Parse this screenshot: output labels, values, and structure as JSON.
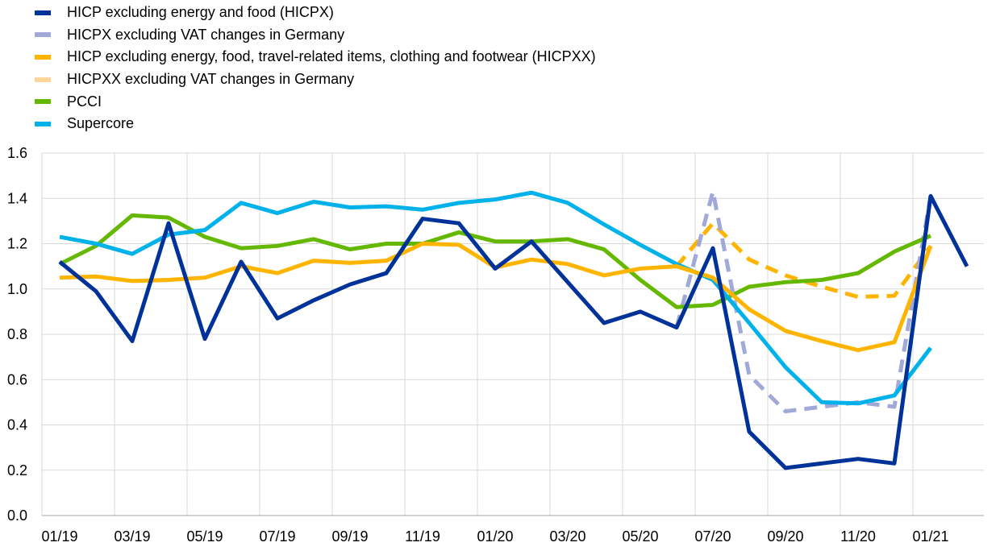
{
  "chart_data": {
    "type": "line",
    "title": "",
    "xlabel": "",
    "ylabel": "",
    "ylim": [
      0.0,
      1.6
    ],
    "yticks": [
      "0.0",
      "0.2",
      "0.4",
      "0.6",
      "0.8",
      "1.0",
      "1.2",
      "1.4",
      "1.6"
    ],
    "x": [
      "01/19",
      "02/19",
      "03/19",
      "04/19",
      "05/19",
      "06/19",
      "07/19",
      "08/19",
      "09/19",
      "10/19",
      "11/19",
      "12/19",
      "01/20",
      "02/20",
      "03/20",
      "04/20",
      "05/20",
      "06/20",
      "07/20",
      "08/20",
      "09/20",
      "10/20",
      "11/20",
      "12/20",
      "01/21",
      "02/21"
    ],
    "xtick_labels": [
      "01/19",
      "03/19",
      "05/19",
      "07/19",
      "09/19",
      "11/19",
      "01/20",
      "03/20",
      "05/20",
      "07/20",
      "09/20",
      "11/20",
      "01/21"
    ],
    "grid": true,
    "legend_position": "top-left",
    "series": [
      {
        "name": "HICP excluding energy and food (HICPX)",
        "color": "#003299",
        "style": "solid",
        "values": [
          1.12,
          0.99,
          0.77,
          1.29,
          0.78,
          1.12,
          0.87,
          0.95,
          1.02,
          1.07,
          1.31,
          1.29,
          1.09,
          1.21,
          1.03,
          0.85,
          0.9,
          0.83,
          1.18,
          0.37,
          0.21,
          0.23,
          0.25,
          0.23,
          1.41,
          1.1
        ]
      },
      {
        "name": "HICPX excluding VAT changes in Germany",
        "color": "#a0a9d8",
        "style": "dashed",
        "values": [
          null,
          null,
          null,
          null,
          null,
          null,
          null,
          null,
          null,
          null,
          null,
          null,
          null,
          null,
          null,
          null,
          null,
          0.83,
          1.43,
          0.62,
          0.46,
          0.48,
          0.5,
          0.48,
          1.41,
          null
        ]
      },
      {
        "name": "HICP excluding energy, food, travel-related items, clothing and footwear (HICPXX)",
        "color": "#ffb400",
        "style": "solid",
        "values": [
          1.05,
          1.055,
          1.035,
          1.04,
          1.05,
          1.1,
          1.07,
          1.125,
          1.115,
          1.125,
          1.2,
          1.195,
          1.095,
          1.13,
          1.11,
          1.06,
          1.09,
          1.1,
          1.05,
          0.91,
          0.815,
          0.77,
          0.73,
          0.765,
          1.19,
          null
        ]
      },
      {
        "name": "HICPXX excluding VAT changes in Germany",
        "color": "#ffd59a",
        "style": "dashed",
        "plotted_color": "#ffb400",
        "values": [
          null,
          null,
          null,
          null,
          null,
          null,
          null,
          null,
          null,
          null,
          null,
          null,
          null,
          null,
          null,
          null,
          null,
          1.1,
          1.29,
          1.13,
          1.06,
          1.01,
          0.965,
          0.97,
          1.19,
          null
        ]
      },
      {
        "name": "PCCI",
        "color": "#65b800",
        "style": "solid",
        "values": [
          1.11,
          1.19,
          1.325,
          1.315,
          1.23,
          1.18,
          1.19,
          1.22,
          1.175,
          1.2,
          1.2,
          1.25,
          1.21,
          1.21,
          1.22,
          1.175,
          1.04,
          0.92,
          0.93,
          1.01,
          1.03,
          1.04,
          1.07,
          1.165,
          1.235,
          null
        ]
      },
      {
        "name": "Supercore",
        "color": "#00b1ea",
        "style": "solid",
        "values": [
          1.23,
          1.2,
          1.155,
          1.24,
          1.26,
          1.38,
          1.335,
          1.385,
          1.36,
          1.365,
          1.35,
          1.38,
          1.395,
          1.425,
          1.38,
          1.285,
          1.195,
          1.11,
          1.04,
          0.85,
          0.655,
          0.5,
          0.495,
          0.53,
          0.74,
          null
        ]
      }
    ]
  }
}
